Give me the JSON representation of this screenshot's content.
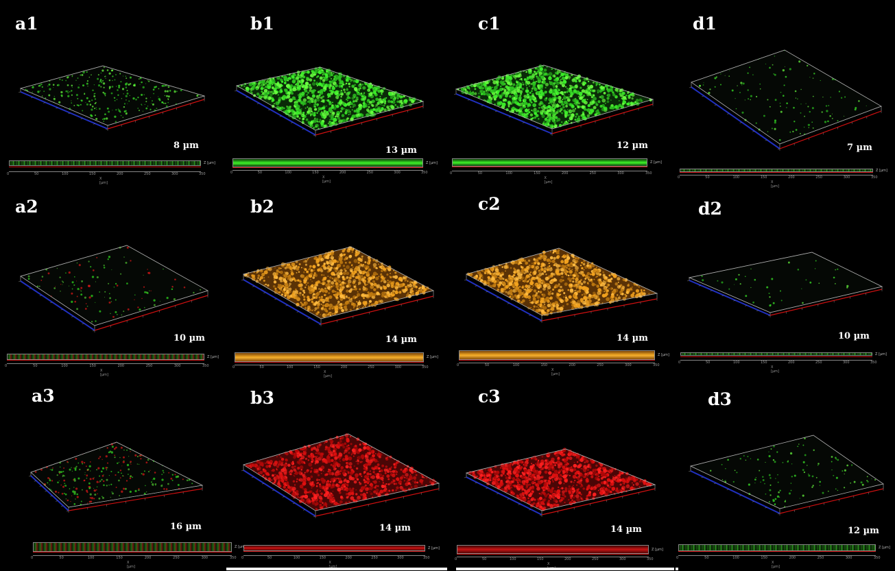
{
  "colors": {
    "background": "#000000",
    "green_stain": "#36e026",
    "orange_stain": "#e09a1c",
    "red_stain": "#e01818",
    "axis_red": "#d01010",
    "axis_blue": "#2030c0",
    "box_outline": "#a0a0a0"
  },
  "slice_axis": {
    "x_label": "X [µm]",
    "z_label": "Z [µm]",
    "x_ticks": [
      "0",
      "50",
      "100",
      "150",
      "200",
      "250",
      "300",
      "350"
    ]
  },
  "panels": [
    {
      "id": "a1",
      "label": "a1",
      "thickness": "8 µm",
      "stain": "green",
      "density": "medium"
    },
    {
      "id": "b1",
      "label": "b1",
      "thickness": "13 µm",
      "stain": "green",
      "density": "dense"
    },
    {
      "id": "c1",
      "label": "c1",
      "thickness": "12 µm",
      "stain": "green",
      "density": "dense"
    },
    {
      "id": "d1",
      "label": "d1",
      "thickness": "7 µm",
      "stain": "green",
      "density": "sparse"
    },
    {
      "id": "a2",
      "label": "a2",
      "thickness": "10 µm",
      "stain": "green-red",
      "density": "sparse"
    },
    {
      "id": "b2",
      "label": "b2",
      "thickness": "14 µm",
      "stain": "orange",
      "density": "dense"
    },
    {
      "id": "c2",
      "label": "c2",
      "thickness": "14 µm",
      "stain": "orange",
      "density": "dense"
    },
    {
      "id": "d2",
      "label": "d2",
      "thickness": "10 µm",
      "stain": "green",
      "density": "very-sparse"
    },
    {
      "id": "a3",
      "label": "a3",
      "thickness": "16 µm",
      "stain": "green-red",
      "density": "medium"
    },
    {
      "id": "b3",
      "label": "b3",
      "thickness": "14 µm",
      "stain": "red",
      "density": "dense"
    },
    {
      "id": "c3",
      "label": "c3",
      "thickness": "14 µm",
      "stain": "red",
      "density": "dense"
    },
    {
      "id": "d3",
      "label": "d3",
      "thickness": "12 µm",
      "stain": "green",
      "density": "sparse"
    }
  ]
}
